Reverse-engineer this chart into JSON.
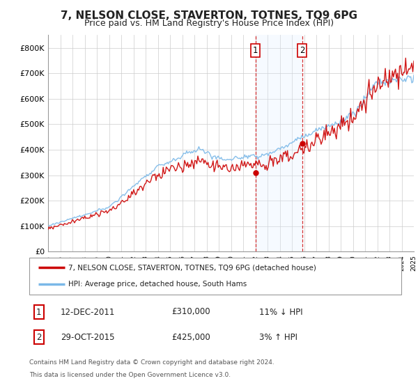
{
  "title": "7, NELSON CLOSE, STAVERTON, TOTNES, TQ9 6PG",
  "subtitle": "Price paid vs. HM Land Registry's House Price Index (HPI)",
  "ylim": [
    0,
    850000
  ],
  "yticks": [
    0,
    100000,
    200000,
    300000,
    400000,
    500000,
    600000,
    700000,
    800000
  ],
  "ytick_labels": [
    "£0",
    "£100K",
    "£200K",
    "£300K",
    "£400K",
    "£500K",
    "£600K",
    "£700K",
    "£800K"
  ],
  "hpi_color": "#7ab8e8",
  "price_color": "#cc0000",
  "marker_color": "#cc0000",
  "shade_color": "#ddeeff",
  "sale1_x": 2012.0,
  "sale1_y": 310000,
  "sale1_label": "1",
  "sale2_x": 2015.83,
  "sale2_y": 425000,
  "sale2_label": "2",
  "shade_start": 2012.0,
  "shade_end": 2015.83,
  "legend_line1": "7, NELSON CLOSE, STAVERTON, TOTNES, TQ9 6PG (detached house)",
  "legend_line2": "HPI: Average price, detached house, South Hams",
  "table_row1_num": "1",
  "table_row1_date": "12-DEC-2011",
  "table_row1_price": "£310,000",
  "table_row1_pct": "11% ↓ HPI",
  "table_row2_num": "2",
  "table_row2_date": "29-OCT-2015",
  "table_row2_price": "£425,000",
  "table_row2_pct": "3% ↑ HPI",
  "footnote_line1": "Contains HM Land Registry data © Crown copyright and database right 2024.",
  "footnote_line2": "This data is licensed under the Open Government Licence v3.0.",
  "background_color": "#ffffff",
  "grid_color": "#cccccc",
  "title_fontsize": 11,
  "subtitle_fontsize": 9,
  "tick_fontsize": 8,
  "xmin": 1995,
  "xmax": 2025
}
